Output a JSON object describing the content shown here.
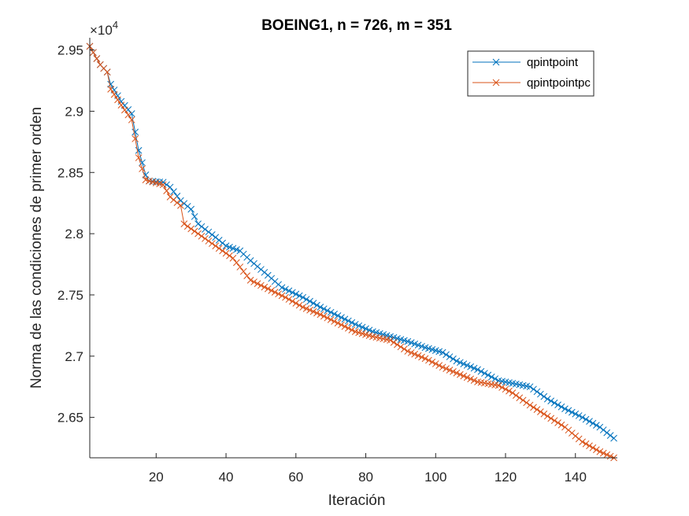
{
  "chart_data": {
    "type": "line",
    "title": "BOEING1, n = 726, m = 351",
    "xlabel": "Iteración",
    "ylabel": "Norma de las condiciones de primer orden",
    "exponent_base": "×10",
    "exponent_power": "4",
    "xlim": [
      1,
      152
    ],
    "ylim": [
      2.617,
      2.96
    ],
    "x_ticks": [
      20,
      40,
      60,
      80,
      100,
      120,
      140
    ],
    "x_tick_labels": [
      "20",
      "40",
      "60",
      "80",
      "100",
      "120",
      "140"
    ],
    "y_ticks": [
      2.65,
      2.7,
      2.75,
      2.8,
      2.85,
      2.9,
      2.95
    ],
    "y_tick_labels": [
      "2.65",
      "2.7",
      "2.75",
      "2.8",
      "2.85",
      "2.9",
      "2.95"
    ],
    "legend_position": "top-right",
    "grid": false,
    "marker": "x",
    "series": [
      {
        "name": "qpintpoint",
        "color": "#0072BD",
        "x": [
          1,
          4,
          6,
          7,
          10,
          13,
          15,
          17,
          18,
          22,
          24,
          27,
          30,
          32,
          37,
          40,
          44,
          47,
          52,
          56,
          62,
          67,
          72,
          77,
          82,
          87,
          92,
          97,
          102,
          106,
          112,
          118,
          127,
          132,
          137,
          142,
          147,
          151
        ],
        "y": [
          2.953,
          2.938,
          2.932,
          2.922,
          2.908,
          2.898,
          2.868,
          2.848,
          2.843,
          2.842,
          2.838,
          2.827,
          2.82,
          2.808,
          2.797,
          2.79,
          2.786,
          2.778,
          2.766,
          2.756,
          2.748,
          2.74,
          2.733,
          2.726,
          2.72,
          2.716,
          2.712,
          2.707,
          2.703,
          2.696,
          2.689,
          2.68,
          2.675,
          2.665,
          2.657,
          2.65,
          2.642,
          2.633
        ]
      },
      {
        "name": "qpintpointpc",
        "color": "#D95319",
        "x": [
          1,
          4,
          6,
          7,
          10,
          13,
          15,
          17,
          18,
          22,
          24,
          27,
          28,
          32,
          37,
          42,
          47,
          52,
          57,
          62,
          67,
          72,
          77,
          82,
          87,
          92,
          97,
          102,
          107,
          112,
          118,
          122,
          127,
          132,
          137,
          142,
          147,
          151
        ],
        "y": [
          2.953,
          2.938,
          2.932,
          2.918,
          2.905,
          2.893,
          2.862,
          2.844,
          2.843,
          2.84,
          2.83,
          2.823,
          2.808,
          2.8,
          2.79,
          2.78,
          2.762,
          2.755,
          2.748,
          2.74,
          2.734,
          2.727,
          2.72,
          2.716,
          2.713,
          2.704,
          2.698,
          2.691,
          2.685,
          2.679,
          2.676,
          2.67,
          2.66,
          2.651,
          2.642,
          2.63,
          2.622,
          2.617
        ]
      }
    ]
  }
}
